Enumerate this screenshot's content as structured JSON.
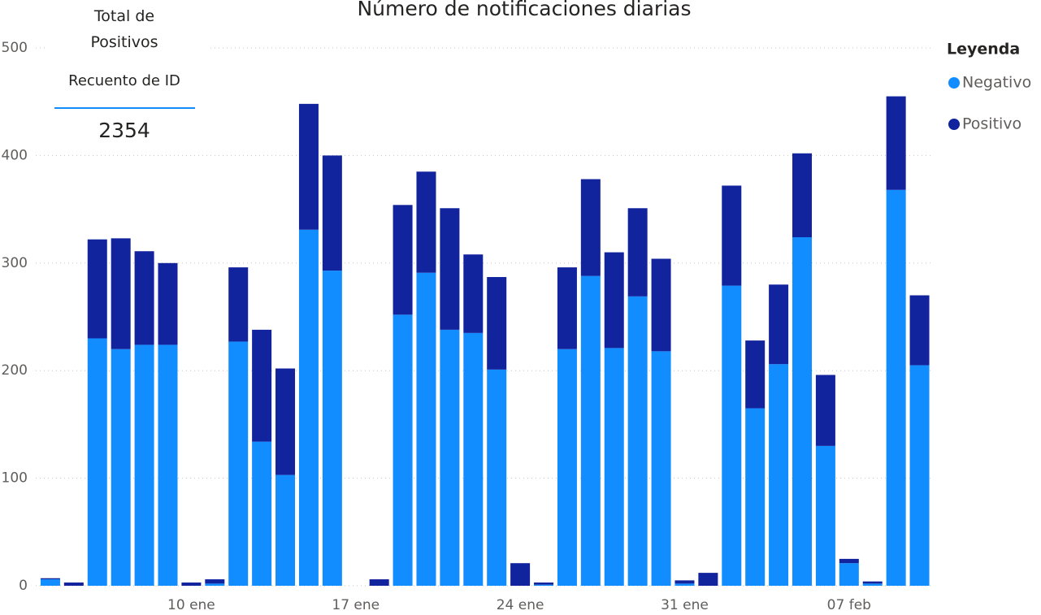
{
  "card": {
    "title": "Total de Positivos",
    "label": "Recuento de ID",
    "value": 2354
  },
  "chart_data": {
    "type": "stacked_bar",
    "title": "Número de notificaciones diarias",
    "legend_title": "Leyenda",
    "legend_position": "right",
    "categories": [
      null,
      null,
      null,
      null,
      null,
      null,
      "10 ene",
      null,
      null,
      null,
      null,
      null,
      null,
      "17 ene",
      null,
      null,
      null,
      null,
      null,
      null,
      "24 ene",
      null,
      null,
      null,
      null,
      null,
      null,
      "31 ene",
      null,
      null,
      null,
      null,
      null,
      null,
      "07 feb",
      null,
      null,
      null
    ],
    "series": [
      {
        "name": "Negativo",
        "color": "#118dff",
        "values": [
          6,
          0,
          230,
          220,
          224,
          224,
          0,
          2,
          227,
          134,
          103,
          331,
          293,
          0,
          0,
          252,
          291,
          238,
          235,
          201,
          0,
          1,
          220,
          288,
          221,
          269,
          218,
          2,
          0,
          279,
          165,
          206,
          324,
          130,
          21,
          2,
          368,
          205
        ]
      },
      {
        "name": "Positivo",
        "color": "#12239e",
        "values": [
          1,
          3,
          92,
          103,
          87,
          76,
          3,
          4,
          69,
          104,
          99,
          117,
          107,
          0,
          6,
          102,
          94,
          113,
          73,
          86,
          21,
          2,
          76,
          90,
          89,
          82,
          86,
          3,
          12,
          93,
          63,
          74,
          78,
          66,
          4,
          2,
          87,
          65
        ]
      }
    ],
    "ylim": [
      0,
      500
    ],
    "yticks": [
      0,
      100,
      200,
      300,
      400,
      500
    ],
    "grid": true
  }
}
